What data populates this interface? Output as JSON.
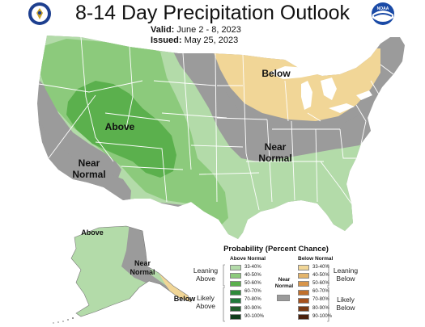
{
  "header": {
    "title": "8-14 Day Precipitation Outlook",
    "valid_label": "Valid:",
    "valid_value": "June 2 - 8, 2023",
    "issued_label": "Issued:",
    "issued_value": "May 25, 2023"
  },
  "logos": {
    "left": "commerce-seal-icon",
    "right": "noaa-logo-icon",
    "right_text": "NOAA"
  },
  "map_labels": {
    "above_west": "Above",
    "near_normal_west_1": "Near",
    "near_normal_west_2": "Normal",
    "below_north": "Below",
    "near_normal_central_1": "Near",
    "near_normal_central_2": "Normal",
    "alaska_above": "Above",
    "alaska_near_1": "Near",
    "alaska_near_2": "Normal",
    "alaska_below": "Below"
  },
  "legend": {
    "title": "Probability (Percent Chance)",
    "above_header": "Above Normal",
    "below_header": "Below Normal",
    "near_header_1": "Near",
    "near_header_2": "Normal",
    "leaning_above_1": "Leaning",
    "leaning_above_2": "Above",
    "likely_above_1": "Likely",
    "likely_above_2": "Above",
    "leaning_below_1": "Leaning",
    "leaning_below_2": "Below",
    "likely_below_1": "Likely",
    "likely_below_2": "Below",
    "above_bins": [
      "33-40%",
      "40-50%",
      "50-60%",
      "60-70%",
      "70-80%",
      "80-90%",
      "90-100%"
    ],
    "below_bins": [
      "33-40%",
      "40-50%",
      "50-60%",
      "60-70%",
      "70-80%",
      "80-90%",
      "90-100%"
    ]
  },
  "colors": {
    "above": [
      "#b3dba9",
      "#8cca7c",
      "#5bb04d",
      "#2f8a3a",
      "#1f7a3a",
      "#1e5e2a",
      "#0f3d1a"
    ],
    "below": [
      "#f1d697",
      "#e3b46b",
      "#d8954a",
      "#c1702c",
      "#a6521e",
      "#7a3a14",
      "#4a200c"
    ],
    "near_normal": "#9b9b9b",
    "water": "#ffffff",
    "state_lines": "#ffffff"
  }
}
